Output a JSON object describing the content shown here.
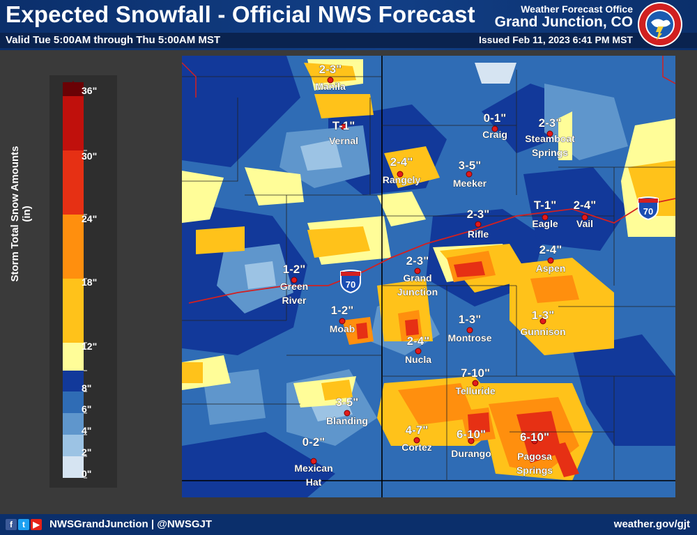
{
  "header": {
    "title": "Expected Snowfall - Official NWS Forecast",
    "valid": "Valid Tue 5:00AM through Thu 5:00AM MST",
    "office_line1": "Weather Forecast Office",
    "office_line2": "Grand Junction, CO",
    "issued": "Issued Feb 11, 2023 6:41 PM MST",
    "seal_text": "NATIONAL WEATHER SERVICE"
  },
  "legend": {
    "title": "Storm Total Snow Amounts (in)",
    "labels": [
      "36\"",
      "30\"",
      "24\"",
      "18\"",
      "12\"",
      "8\"",
      "6\"",
      "4\"",
      "2\"",
      "0\""
    ],
    "bins": [
      {
        "range": "0-1",
        "color": "#d6e4f2"
      },
      {
        "range": "1-2",
        "color": "#9cc3e4"
      },
      {
        "range": "2-3",
        "color": "#5f96cc"
      },
      {
        "range": "3-4",
        "color": "#2f6cb5"
      },
      {
        "range": "4-6",
        "color": "#12399a"
      },
      {
        "range": "6-8",
        "color": "#fffd98"
      },
      {
        "range": "8-12",
        "color": "#ffc21a"
      },
      {
        "range": "12-18",
        "color": "#ff8f0e"
      },
      {
        "range": "18-24",
        "color": "#e63014"
      },
      {
        "range": "24-30",
        "color": "#c0100c"
      },
      {
        "range": "30-36",
        "color": "#6a0205"
      }
    ]
  },
  "highways": [
    {
      "label": "70"
    },
    {
      "label": "70"
    }
  ],
  "cities": [
    {
      "name": "Manila",
      "amount": "2-3\""
    },
    {
      "name": "Vernal",
      "amount": "T-1\""
    },
    {
      "name": "Craig",
      "amount": "0-1\""
    },
    {
      "name": "Steamboat Springs",
      "amount": "2-3\""
    },
    {
      "name": "Rangely",
      "amount": "2-4\""
    },
    {
      "name": "Meeker",
      "amount": "3-5\""
    },
    {
      "name": "Rifle",
      "amount": "2-3\""
    },
    {
      "name": "Eagle",
      "amount": "T-1\""
    },
    {
      "name": "Vail",
      "amount": "2-4\""
    },
    {
      "name": "Aspen",
      "amount": "2-4\""
    },
    {
      "name": "Green River",
      "amount": "1-2\""
    },
    {
      "name": "Grand Junction",
      "amount": "2-3\""
    },
    {
      "name": "Moab",
      "amount": "1-2\""
    },
    {
      "name": "Montrose",
      "amount": "1-3\""
    },
    {
      "name": "Gunnison",
      "amount": "1-3\""
    },
    {
      "name": "Nucla",
      "amount": "2-4\""
    },
    {
      "name": "Telluride",
      "amount": "7-10\""
    },
    {
      "name": "Blanding",
      "amount": "3-5\""
    },
    {
      "name": "Cortez",
      "amount": "4-7\""
    },
    {
      "name": "Durango",
      "amount": "6-10\""
    },
    {
      "name": "Pagosa Springs",
      "amount": "6-10\""
    },
    {
      "name": "Mexican Hat",
      "amount": "0-2\""
    }
  ],
  "footer": {
    "social_icons": [
      "facebook-icon",
      "twitter-icon",
      "youtube-icon"
    ],
    "handles": "NWSGrandJunction | @NWSGJT",
    "url": "weather.gov/gjt"
  }
}
